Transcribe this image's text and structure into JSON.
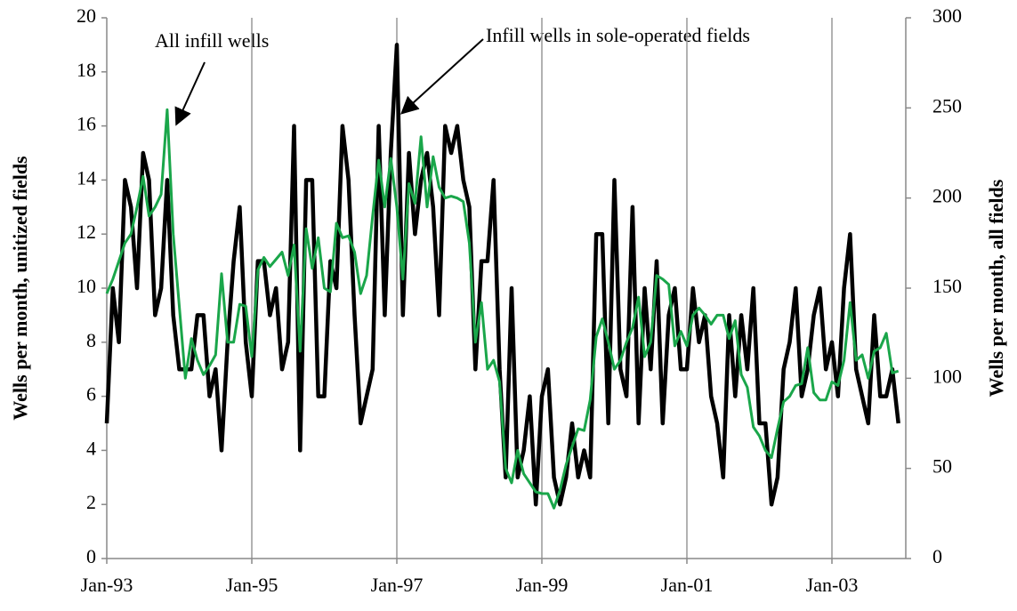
{
  "chart_data": {
    "type": "line",
    "annotations": [],
    "y_label": "Wells per month, unitized fields",
    "y2_label": "Wells per month, all fields",
    "categories": [
      "Jan-93",
      null,
      null,
      null,
      null,
      null,
      null,
      null,
      null,
      null,
      null,
      null,
      null,
      null,
      null,
      null,
      null,
      null,
      null,
      null,
      null,
      null,
      null,
      null,
      "Jan-95",
      null,
      null,
      null,
      null,
      null,
      null,
      null,
      null,
      null,
      null,
      null,
      null,
      null,
      null,
      null,
      null,
      null,
      null,
      null,
      null,
      null,
      null,
      null,
      "Jan-97",
      null,
      null,
      null,
      null,
      null,
      null,
      null,
      null,
      null,
      null,
      null,
      null,
      null,
      null,
      null,
      null,
      null,
      null,
      null,
      null,
      null,
      null,
      null,
      "Jan-99",
      null,
      null,
      null,
      null,
      null,
      null,
      null,
      null,
      null,
      null,
      null,
      null,
      null,
      null,
      null,
      null,
      null,
      null,
      null,
      null,
      null,
      null,
      null,
      "Jan-01",
      null,
      null,
      null,
      null,
      null,
      null,
      null,
      null,
      null,
      null,
      null,
      null,
      null,
      null,
      null,
      null,
      null,
      null,
      null,
      null,
      null,
      null,
      null,
      "Jan-03",
      null,
      null,
      null,
      null,
      null,
      null,
      null,
      null,
      null,
      null,
      null
    ],
    "series": [
      {
        "name": "Infill wells in sole-operated fields",
        "color": "#000000",
        "axis": "y",
        "values": [
          5,
          10,
          8,
          14,
          13,
          10,
          15,
          14,
          9,
          10,
          14,
          9,
          7,
          7,
          7,
          9,
          9,
          6,
          7,
          4,
          8,
          11,
          13,
          8,
          6,
          11,
          11,
          9,
          10,
          7,
          8,
          16,
          4,
          14,
          14,
          6,
          6,
          11,
          10,
          16,
          14,
          9,
          5,
          6,
          7,
          16,
          9,
          15,
          19,
          9,
          15,
          12,
          14,
          15,
          13,
          9,
          16,
          15,
          16,
          14,
          13,
          7,
          11,
          11,
          14,
          7,
          3,
          10,
          3,
          4,
          6,
          2,
          6,
          7,
          3,
          2,
          3,
          5,
          3,
          4,
          3,
          12,
          12,
          5,
          14,
          7,
          6,
          13,
          5,
          10,
          7,
          11,
          5,
          9,
          10,
          7,
          7,
          10,
          8,
          9,
          6,
          5,
          3,
          9,
          6,
          9,
          7,
          10,
          5,
          5,
          2,
          3,
          7,
          8,
          10,
          6,
          7,
          9,
          10,
          7,
          8,
          6,
          10,
          12,
          7,
          6,
          5,
          9,
          6,
          6,
          7,
          5
        ]
      },
      {
        "name": "All infill wells",
        "color": "#1aa64a",
        "axis": "y2",
        "values": [
          147,
          155,
          165,
          175,
          180,
          195,
          212,
          190,
          195,
          202,
          249,
          180,
          140,
          100,
          122,
          110,
          102,
          107,
          113,
          158,
          120,
          120,
          141,
          140,
          112,
          160,
          167,
          162,
          166,
          170,
          157,
          174,
          115,
          183,
          161,
          178,
          150,
          148,
          186,
          178,
          179,
          170,
          147,
          157,
          190,
          221,
          195,
          222,
          195,
          155,
          208,
          197,
          234,
          195,
          223,
          206,
          200,
          201,
          200,
          198,
          175,
          120,
          142,
          105,
          110,
          98,
          50,
          42,
          60,
          47,
          42,
          37,
          36,
          36,
          28,
          38,
          52,
          62,
          72,
          71,
          88,
          123,
          133,
          120,
          105,
          110,
          120,
          128,
          145,
          112,
          120,
          157,
          155,
          152,
          118,
          126,
          118,
          135,
          139,
          135,
          130,
          135,
          135,
          122,
          132,
          102,
          95,
          73,
          68,
          60,
          56,
          72,
          87,
          90,
          96,
          97,
          117,
          92,
          88,
          88,
          98,
          96,
          110,
          142,
          110,
          113,
          100,
          115,
          117,
          125,
          103,
          104
        ]
      }
    ],
    "ylim": [
      0,
      20
    ],
    "yticks": [
      0,
      2,
      4,
      6,
      8,
      10,
      12,
      14,
      16,
      18,
      20
    ],
    "y2lim": [
      0,
      300
    ],
    "y2ticks": [
      0,
      50,
      100,
      150,
      200,
      250,
      300
    ],
    "grid": true
  }
}
